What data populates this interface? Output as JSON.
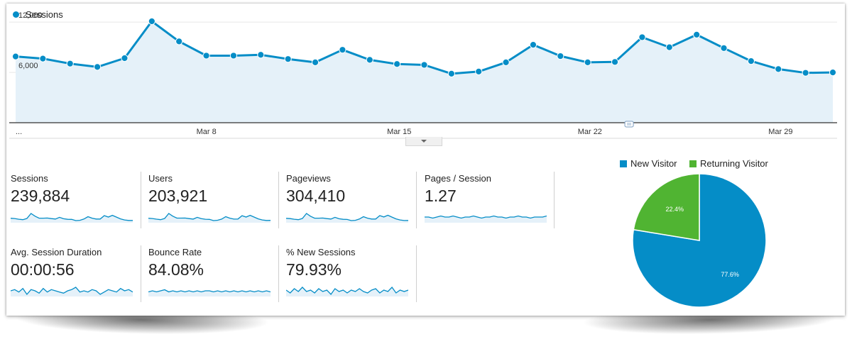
{
  "chart_legend": {
    "label": "Sessions",
    "color": "#058dc7"
  },
  "chart_data": [
    {
      "type": "area",
      "title": "",
      "series": [
        {
          "name": "Sessions",
          "values": [
            7900,
            7650,
            7050,
            6650,
            7700,
            12100,
            9700,
            8000,
            8000,
            8100,
            7600,
            7200,
            8700,
            7500,
            7000,
            6900,
            5850,
            6100,
            7200,
            9300,
            7950,
            7200,
            7250,
            10200,
            9000,
            10500,
            8900,
            7350,
            6400,
            5950,
            6000
          ]
        }
      ],
      "y_ticks": [
        "12,000",
        "6,000"
      ],
      "ylim": [
        0,
        13200
      ],
      "x_ticks": [
        "...",
        "Mar 8",
        "Mar 15",
        "Mar 22",
        "Mar 29"
      ],
      "x_tick_index": [
        0,
        7,
        14,
        21,
        28
      ],
      "annotation_index": 22,
      "grid": true,
      "color": "#058dc7",
      "fill": "#e5f1f9"
    },
    {
      "type": "pie",
      "legend_position": "top",
      "slices": [
        {
          "label": "New Visitor",
          "value": 77.6,
          "display": "77.6%",
          "color": "#058dc7"
        },
        {
          "label": "Returning Visitor",
          "value": 22.4,
          "display": "22.4%",
          "color": "#50b432"
        }
      ]
    }
  ],
  "metrics": [
    {
      "label": "Sessions",
      "value": "239,884",
      "spark": [
        7900,
        7650,
        7050,
        6650,
        7700,
        12100,
        9700,
        8000,
        8000,
        8100,
        7600,
        7200,
        8700,
        7500,
        7000,
        6900,
        5850,
        6100,
        7200,
        9300,
        7950,
        7200,
        7250,
        10200,
        9000,
        10500,
        8900,
        7350,
        6400,
        5950,
        6000
      ]
    },
    {
      "label": "Users",
      "value": "203,921",
      "spark": [
        6700,
        6500,
        6000,
        5650,
        6550,
        10300,
        8250,
        6800,
        6800,
        6900,
        6450,
        6100,
        7400,
        6400,
        5950,
        5850,
        4950,
        5200,
        6100,
        7900,
        6750,
        6100,
        6150,
        8650,
        7650,
        8900,
        7550,
        6250,
        5450,
        5050,
        5100
      ]
    },
    {
      "label": "Pageviews",
      "value": "304,410",
      "spark": [
        10000,
        9700,
        8950,
        8450,
        9800,
        15350,
        12300,
        10150,
        10150,
        10300,
        9650,
        9150,
        11050,
        9500,
        8900,
        8750,
        7450,
        7750,
        9150,
        11800,
        10100,
        9150,
        9200,
        12950,
        11450,
        13350,
        11300,
        9350,
        8150,
        7550,
        7600
      ]
    },
    {
      "label": "Pages / Session",
      "value": "1.27",
      "spark": [
        1.27,
        1.27,
        1.26,
        1.27,
        1.28,
        1.27,
        1.27,
        1.28,
        1.27,
        1.26,
        1.27,
        1.27,
        1.28,
        1.27,
        1.26,
        1.27,
        1.27,
        1.28,
        1.27,
        1.27,
        1.26,
        1.27,
        1.27,
        1.28,
        1.27,
        1.27,
        1.26,
        1.27,
        1.27,
        1.27,
        1.28
      ]
    },
    {
      "label": "Avg. Session Duration",
      "value": "00:00:56",
      "spark": [
        56,
        57,
        55,
        58,
        53,
        57,
        56,
        54,
        58,
        55,
        57,
        56,
        55,
        54,
        56,
        57,
        59,
        55,
        56,
        55,
        57,
        56,
        53,
        55,
        57,
        56,
        55,
        58,
        56,
        57,
        55
      ]
    },
    {
      "label": "Bounce Rate",
      "value": "84.08%",
      "spark": [
        84.0,
        84.1,
        84.0,
        84.1,
        84.2,
        84.0,
        84.1,
        84.0,
        84.1,
        84.0,
        84.1,
        84.0,
        84.1,
        84.0,
        84.1,
        84.1,
        84.0,
        84.1,
        84.0,
        84.1,
        84.0,
        84.1,
        84.0,
        84.1,
        84.0,
        84.1,
        84.0,
        84.1,
        84.0,
        84.1,
        84.0
      ]
    },
    {
      "label": "% New Sessions",
      "value": "79.93%",
      "spark": [
        80.0,
        79.8,
        80.1,
        79.9,
        80.2,
        79.9,
        80.0,
        79.8,
        80.1,
        79.9,
        80.0,
        79.7,
        80.1,
        79.9,
        80.0,
        79.8,
        80.0,
        79.9,
        80.1,
        79.9,
        79.8,
        80.0,
        80.1,
        79.8,
        80.0,
        79.9,
        80.2,
        79.8,
        80.0,
        79.9,
        80.0
      ]
    }
  ]
}
